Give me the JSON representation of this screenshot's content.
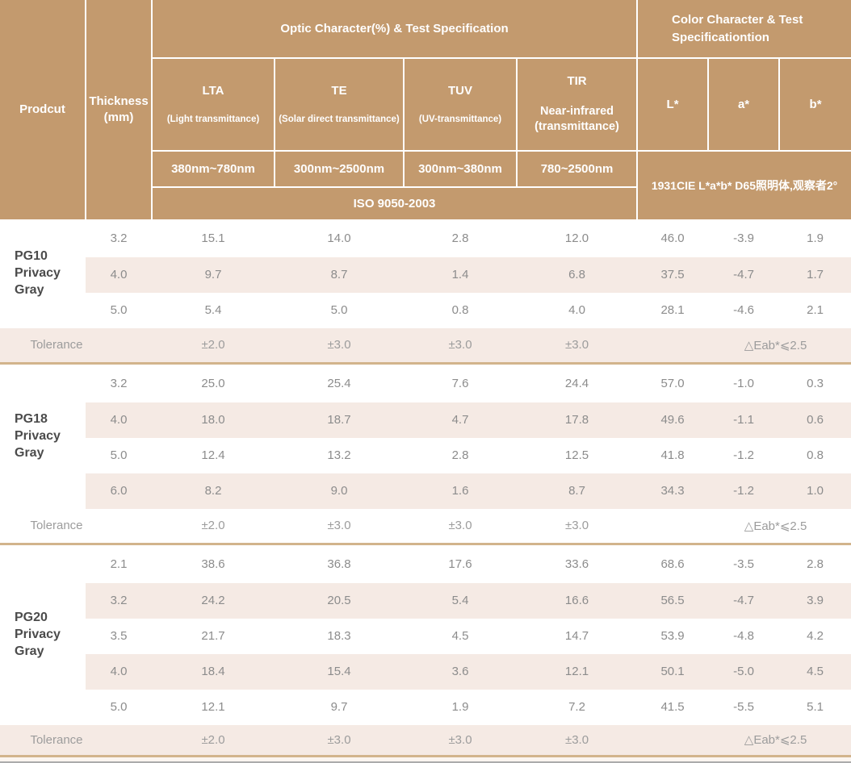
{
  "header": {
    "product_label": "Prodcut",
    "thickness_label": "Thickness\n(mm)",
    "optic_group": "Optic Character(%) & Test Specification",
    "color_group": "Color Character & Test\nSpecificationtion",
    "optic_columns": [
      {
        "name": "LTA",
        "sub": "(Light transmittance)",
        "range": "380nm~780nm"
      },
      {
        "name": "TE",
        "sub": "(Solar direct transmittance)",
        "range": "300nm~2500nm"
      },
      {
        "name": "TUV",
        "sub": "(UV-transmittance)",
        "range": "300nm~380nm"
      },
      {
        "name": "TIR",
        "sub": "Near-infrared\n(transmittance)",
        "range": "780~2500nm"
      }
    ],
    "color_columns": [
      "L*",
      "a*",
      "b*"
    ],
    "optic_standard": "ISO 9050-2003",
    "color_standard": "1931CIE L*a*b*  D65照明体,观察者2°"
  },
  "body": {
    "tolerance_label": "Tolerance",
    "groups": [
      {
        "product": "PG10\nPrivacy Gray",
        "rows": [
          {
            "thickness": "3.2",
            "lta": "15.1",
            "te": "14.0",
            "tuv": "2.8",
            "tir": "12.0",
            "l": "46.0",
            "a": "-3.9",
            "b": "1.9"
          },
          {
            "thickness": "4.0",
            "lta": "9.7",
            "te": "8.7",
            "tuv": "1.4",
            "tir": "6.8",
            "l": "37.5",
            "a": "-4.7",
            "b": "1.7"
          },
          {
            "thickness": "5.0",
            "lta": "5.4",
            "te": "5.0",
            "tuv": "0.8",
            "tir": "4.0",
            "l": "28.1",
            "a": "-4.6",
            "b": "2.1"
          }
        ],
        "tolerance": {
          "lta": "±2.0",
          "te": "±3.0",
          "tuv": "±3.0",
          "tir": "±3.0",
          "color": "△Eab*⩽2.5"
        }
      },
      {
        "product": "PG18\nPrivacy Gray",
        "rows": [
          {
            "thickness": "3.2",
            "lta": "25.0",
            "te": "25.4",
            "tuv": "7.6",
            "tir": "24.4",
            "l": "57.0",
            "a": "-1.0",
            "b": "0.3"
          },
          {
            "thickness": "4.0",
            "lta": "18.0",
            "te": "18.7",
            "tuv": "4.7",
            "tir": "17.8",
            "l": "49.6",
            "a": "-1.1",
            "b": "0.6"
          },
          {
            "thickness": "5.0",
            "lta": "12.4",
            "te": "13.2",
            "tuv": "2.8",
            "tir": "12.5",
            "l": "41.8",
            "a": "-1.2",
            "b": "0.8"
          },
          {
            "thickness": "6.0",
            "lta": "8.2",
            "te": "9.0",
            "tuv": "1.6",
            "tir": "8.7",
            "l": "34.3",
            "a": "-1.2",
            "b": "1.0"
          }
        ],
        "tolerance": {
          "lta": "±2.0",
          "te": "±3.0",
          "tuv": "±3.0",
          "tir": "±3.0",
          "color": "△Eab*⩽2.5"
        }
      },
      {
        "product": "PG20\nPrivacy Gray",
        "rows": [
          {
            "thickness": "2.1",
            "lta": "38.6",
            "te": "36.8",
            "tuv": "17.6",
            "tir": "33.6",
            "l": "68.6",
            "a": "-3.5",
            "b": "2.8"
          },
          {
            "thickness": "3.2",
            "lta": "24.2",
            "te": "20.5",
            "tuv": "5.4",
            "tir": "16.6",
            "l": "56.5",
            "a": "-4.7",
            "b": "3.9"
          },
          {
            "thickness": "3.5",
            "lta": "21.7",
            "te": "18.3",
            "tuv": "4.5",
            "tir": "14.7",
            "l": "53.9",
            "a": "-4.8",
            "b": "4.2"
          },
          {
            "thickness": "4.0",
            "lta": "18.4",
            "te": "15.4",
            "tuv": "3.6",
            "tir": "12.1",
            "l": "50.1",
            "a": "-5.0",
            "b": "4.5"
          },
          {
            "thickness": "5.0",
            "lta": "12.1",
            "te": "9.7",
            "tuv": "1.9",
            "tir": "7.2",
            "l": "41.5",
            "a": "-5.5",
            "b": "5.1"
          }
        ],
        "tolerance": {
          "lta": "±2.0",
          "te": "±3.0",
          "tuv": "±3.0",
          "tir": "±3.0",
          "color": "△Eab*⩽2.5"
        }
      }
    ]
  },
  "colors": {
    "header_bg": "#c39a6e",
    "header_text": "#ffffff",
    "row_shade": "#f5eae4",
    "separator_line": "#d2b48c",
    "data_text": "#8c8c8c",
    "product_text": "#4b4b4b",
    "tolerance_text": "#9c9c9c"
  }
}
